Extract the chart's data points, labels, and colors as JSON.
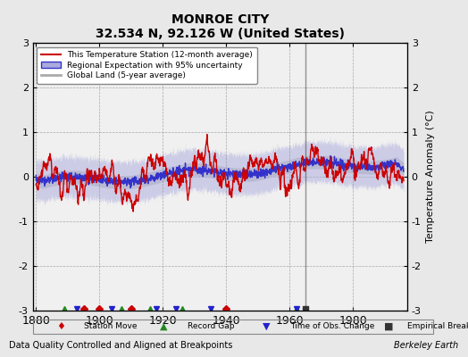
{
  "title": "MONROE CITY",
  "subtitle": "32.534 N, 92.126 W (United States)",
  "ylabel": "Temperature Anomaly (°C)",
  "xlabel_bottom": "Data Quality Controlled and Aligned at Breakpoints",
  "xlabel_right": "Berkeley Earth",
  "year_start": 1880,
  "year_end": 1995,
  "ylim": [
    -3,
    3
  ],
  "yticks": [
    -3,
    -2,
    -1,
    0,
    1,
    2,
    3
  ],
  "xticks": [
    1880,
    1900,
    1920,
    1940,
    1960,
    1980
  ],
  "bg_color": "#e8e8e8",
  "plot_bg_color": "#f0f0f0",
  "legend_entries": [
    {
      "label": "This Temperature Station (12-month average)",
      "color": "#cc0000",
      "lw": 1.2
    },
    {
      "label": "Regional Expectation with 95% uncertainty",
      "color": "#3333cc",
      "lw": 1.2
    },
    {
      "label": "Global Land (5-year average)",
      "color": "#aaaaaa",
      "lw": 2.0
    }
  ],
  "marker_legend": [
    {
      "label": "Station Move",
      "color": "#cc0000",
      "marker": "D"
    },
    {
      "label": "Record Gap",
      "color": "#228822",
      "marker": "^"
    },
    {
      "label": "Time of Obs. Change",
      "color": "#2222cc",
      "marker": "v"
    },
    {
      "label": "Empirical Break",
      "color": "#333333",
      "marker": "s"
    }
  ],
  "station_moves": [
    1895,
    1900,
    1910,
    1940
  ],
  "record_gaps": [
    1889,
    1907,
    1916,
    1926,
    1962
  ],
  "time_obs_changes": [
    1893,
    1904,
    1918,
    1924,
    1935,
    1962
  ],
  "empirical_breaks": [
    1965
  ],
  "seed": 42
}
